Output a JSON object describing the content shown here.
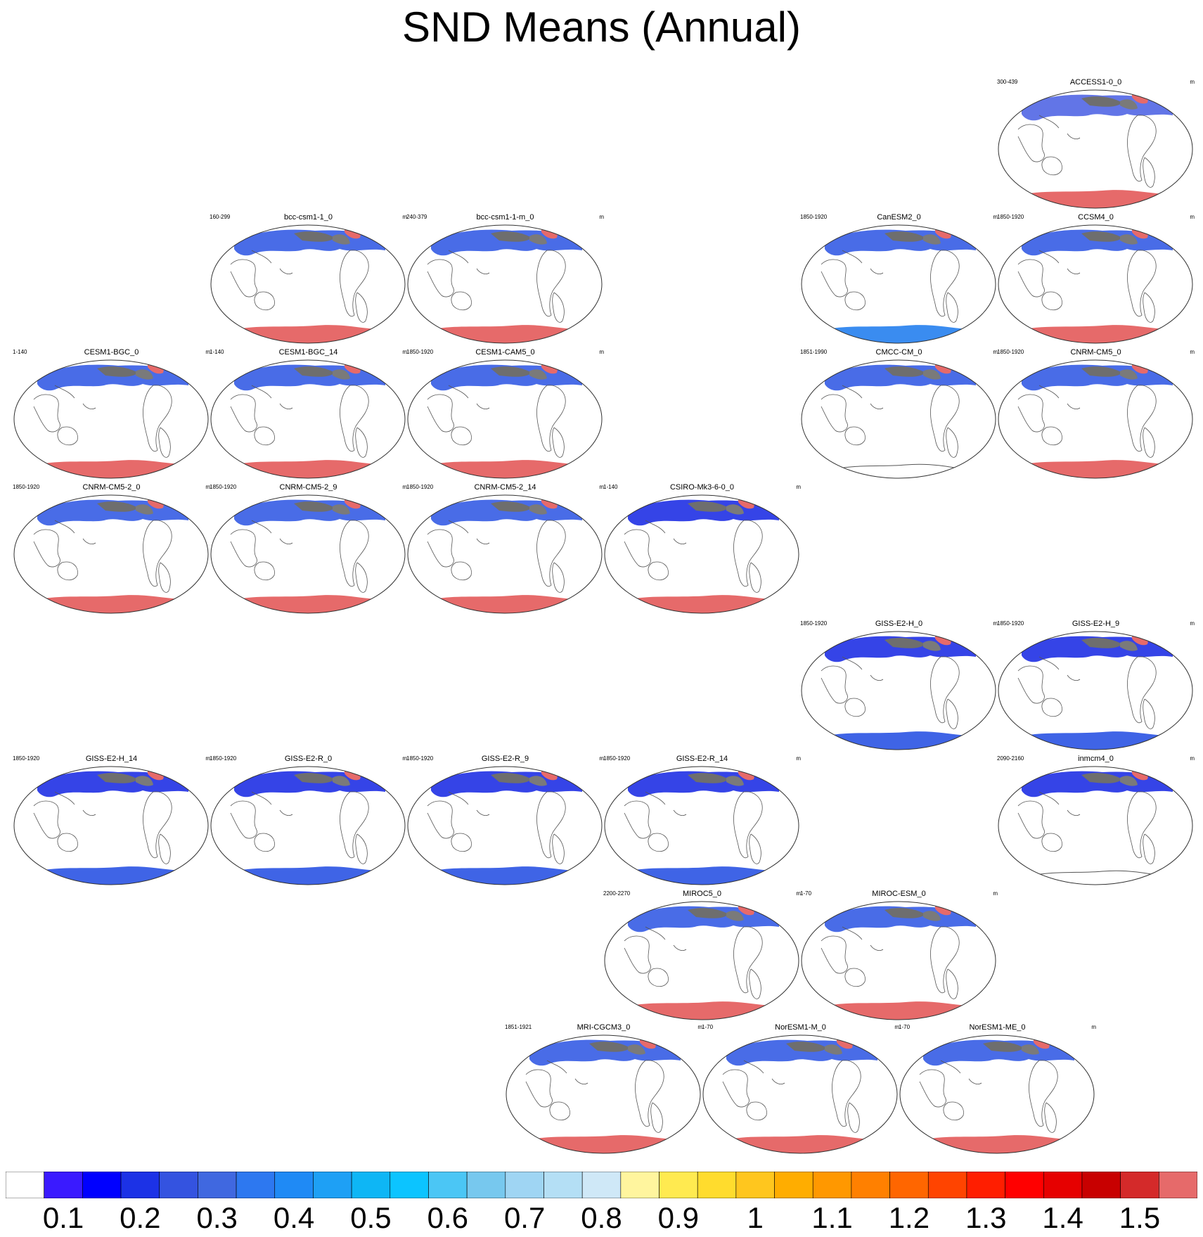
{
  "title": "SND Means (Annual)",
  "panels": [
    {
      "name": "ACCESS1-0_0",
      "years": "300-439",
      "unit": "m",
      "row": 0,
      "col": 5,
      "antarctic": "#e66a6a",
      "land": "#5a6ee6"
    },
    {
      "name": "bcc-csm1-1_0",
      "years": "160-299",
      "unit": "m",
      "row": 1,
      "col": 1,
      "antarctic": "#e66a6a",
      "land": "#3f64e6"
    },
    {
      "name": "bcc-csm1-1-m_0",
      "years": "240-379",
      "unit": "m",
      "row": 1,
      "col": 2,
      "antarctic": "#e66a6a",
      "land": "#3f64e6"
    },
    {
      "name": "CanESM2_0",
      "years": "1850-1920",
      "unit": "m",
      "row": 1,
      "col": 4,
      "antarctic": "#3a8cf0",
      "land": "#3f64e6"
    },
    {
      "name": "CCSM4_0",
      "years": "1850-1920",
      "unit": "m",
      "row": 1,
      "col": 5,
      "antarctic": "#e66a6a",
      "land": "#3f64e6"
    },
    {
      "name": "CESM1-BGC_0",
      "years": "1-140",
      "unit": "m",
      "row": 2,
      "col": 0,
      "antarctic": "#e66a6a",
      "land": "#3f64e6"
    },
    {
      "name": "CESM1-BGC_14",
      "years": "1-140",
      "unit": "m",
      "row": 2,
      "col": 1,
      "antarctic": "#e66a6a",
      "land": "#3f64e6"
    },
    {
      "name": "CESM1-CAM5_0",
      "years": "1850-1920",
      "unit": "m",
      "row": 2,
      "col": 2,
      "antarctic": "#e66a6a",
      "land": "#3f64e6"
    },
    {
      "name": "CMCC-CM_0",
      "years": "1851-1990",
      "unit": "m",
      "row": 2,
      "col": 4,
      "antarctic": "none",
      "land": "#3f64e6"
    },
    {
      "name": "CNRM-CM5_0",
      "years": "1850-1920",
      "unit": "m",
      "row": 2,
      "col": 5,
      "antarctic": "#e66a6a",
      "land": "#3f64e6"
    },
    {
      "name": "CNRM-CM5-2_0",
      "years": "1850-1920",
      "unit": "m",
      "row": 3,
      "col": 0,
      "antarctic": "#e66a6a",
      "land": "#3f64e6"
    },
    {
      "name": "CNRM-CM5-2_9",
      "years": "1850-1920",
      "unit": "m",
      "row": 3,
      "col": 1,
      "antarctic": "#e66a6a",
      "land": "#3f64e6"
    },
    {
      "name": "CNRM-CM5-2_14",
      "years": "1850-1920",
      "unit": "m",
      "row": 3,
      "col": 2,
      "antarctic": "#e66a6a",
      "land": "#3f64e6"
    },
    {
      "name": "CSIRO-Mk3-6-0_0",
      "years": "1-140",
      "unit": "m",
      "row": 3,
      "col": 3,
      "antarctic": "#e66a6a",
      "land": "#2a3ae6"
    },
    {
      "name": "GISS-E2-H_0",
      "years": "1850-1920",
      "unit": "m",
      "row": 4,
      "col": 4,
      "antarctic": "#3f64e6",
      "land": "#2a3ae6"
    },
    {
      "name": "GISS-E2-H_9",
      "years": "1850-1920",
      "unit": "m",
      "row": 4,
      "col": 5,
      "antarctic": "#3f64e6",
      "land": "#2a3ae6"
    },
    {
      "name": "GISS-E2-H_14",
      "years": "1850-1920",
      "unit": "m",
      "row": 5,
      "col": 0,
      "antarctic": "#3f64e6",
      "land": "#2a3ae6"
    },
    {
      "name": "GISS-E2-R_0",
      "years": "1850-1920",
      "unit": "m",
      "row": 5,
      "col": 1,
      "antarctic": "#3f64e6",
      "land": "#2a3ae6"
    },
    {
      "name": "GISS-E2-R_9",
      "years": "1850-1920",
      "unit": "m",
      "row": 5,
      "col": 2,
      "antarctic": "#3f64e6",
      "land": "#2a3ae6"
    },
    {
      "name": "GISS-E2-R_14",
      "years": "1850-1920",
      "unit": "m",
      "row": 5,
      "col": 3,
      "antarctic": "#3f64e6",
      "land": "#2a3ae6"
    },
    {
      "name": "inmcm4_0",
      "years": "2090-2160",
      "unit": "m",
      "row": 5,
      "col": 5,
      "antarctic": "none",
      "land": "#2a3ae6"
    },
    {
      "name": "MIROC5_0",
      "years": "2200-2270",
      "unit": "m",
      "row": 6,
      "col": 3,
      "antarctic": "#e66a6a",
      "land": "#3f64e6"
    },
    {
      "name": "MIROC-ESM_0",
      "years": "1-70",
      "unit": "m",
      "row": 6,
      "col": 4,
      "antarctic": "#e66a6a",
      "land": "#3f64e6"
    },
    {
      "name": "MRI-CGCM3_0",
      "years": "1851-1921",
      "unit": "m",
      "row": 7,
      "col": 2.5,
      "antarctic": "#e66a6a",
      "land": "#3f64e6"
    },
    {
      "name": "NorESM1-M_0",
      "years": "1-70",
      "unit": "m",
      "row": 7,
      "col": 3.5,
      "antarctic": "#e66a6a",
      "land": "#3f64e6"
    },
    {
      "name": "NorESM1-ME_0",
      "years": "1-70",
      "unit": "m",
      "row": 7,
      "col": 4.5,
      "antarctic": "#e66a6a",
      "land": "#3f64e6"
    }
  ],
  "colorbar": {
    "colors": [
      "#ffffff",
      "#3a1aff",
      "#0000ff",
      "#1c32e6",
      "#3453e0",
      "#4068e0",
      "#2d78f0",
      "#1f8af5",
      "#1ea0f5",
      "#0eb6f5",
      "#0cc4ff",
      "#4bc6f5",
      "#77c8ee",
      "#9fd5f3",
      "#b4dff5",
      "#cfe8f7",
      "#fff59e",
      "#ffea50",
      "#ffdc2d",
      "#ffc61e",
      "#ffad00",
      "#ff9800",
      "#ff8000",
      "#ff6600",
      "#ff4400",
      "#ff1e00",
      "#ff0000",
      "#e60000",
      "#c80000",
      "#d42a2a",
      "#e66a6a"
    ],
    "labels": [
      "0.1",
      "0.2",
      "0.3",
      "0.4",
      "0.5",
      "0.6",
      "0.7",
      "0.8",
      "0.9",
      "1",
      "1.1",
      "1.2",
      "1.3",
      "1.4",
      "1.5"
    ]
  }
}
